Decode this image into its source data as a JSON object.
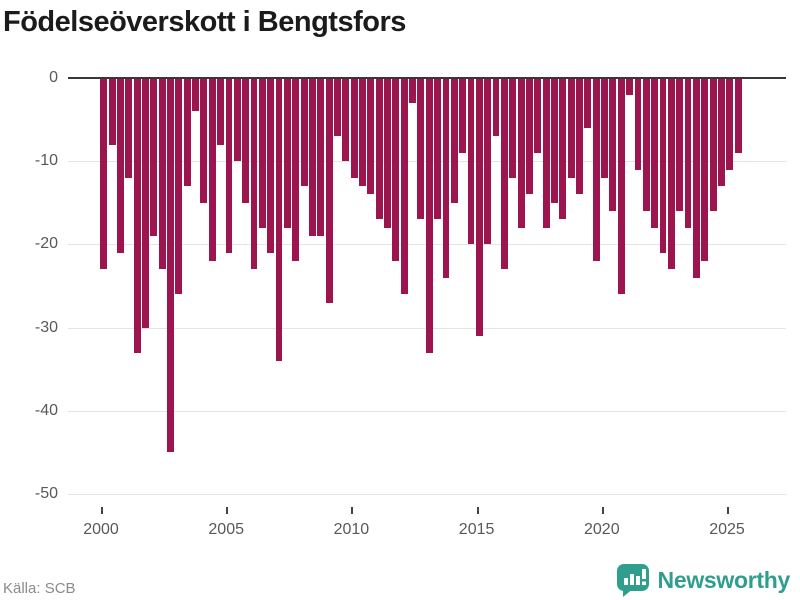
{
  "header": {
    "title": "Födelseöverskott i Bengtsfors"
  },
  "chart_data": {
    "type": "bar",
    "title": "Födelseöverskott i Bengtsfors",
    "start_year": 2000,
    "periods_per_year": 3,
    "values": [
      -23,
      -8,
      -21,
      -12,
      -33,
      -30,
      -19,
      -23,
      -45,
      -26,
      -13,
      -4,
      -15,
      -22,
      -8,
      -21,
      -10,
      -15,
      -23,
      -18,
      -21,
      -34,
      -18,
      -22,
      -13,
      -19,
      -19,
      -27,
      -7,
      -10,
      -12,
      -13,
      -14,
      -17,
      -18,
      -22,
      -26,
      -3,
      -17,
      -33,
      -17,
      -24,
      -15,
      -9,
      -20,
      -31,
      -20,
      -7,
      -23,
      -12,
      -18,
      -14,
      -9,
      -18,
      -15,
      -17,
      -12,
      -14,
      -6,
      -22,
      -12,
      -16,
      -26,
      -2,
      -11,
      -16,
      -18,
      -21,
      -23,
      -16,
      -18,
      -24,
      -22,
      -16,
      -13,
      -11,
      -9
    ],
    "ylim": [
      -50,
      0
    ],
    "yticks": [
      0,
      -10,
      -20,
      -30,
      -40,
      -50
    ],
    "xticks": [
      2000,
      2005,
      2010,
      2015,
      2020,
      2025
    ],
    "grid": true,
    "legend": "none",
    "xlabel": "",
    "ylabel": ""
  },
  "footer": {
    "source": "Källa: SCB",
    "brand": "Newsworthy"
  },
  "colors": {
    "bar": "#9c154f",
    "brand_teal": "#2f9e8e",
    "axis_text": "#57595c",
    "gridline": "#e4e4e4",
    "zeroline": "#37373a",
    "source_text": "#8b8b8b",
    "title_text": "#1b1b1b"
  }
}
